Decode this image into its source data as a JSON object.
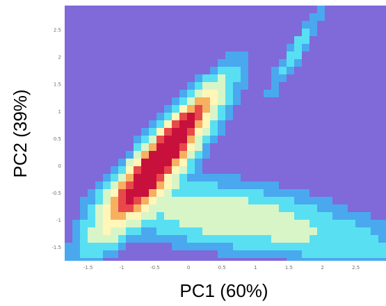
{
  "chart_data": {
    "type": "heatmap",
    "title": "",
    "xlabel": "PC1 (60%)",
    "ylabel": "PC2 (39%)",
    "xlim": [
      -1.85,
      2.95
    ],
    "ylim": [
      -1.75,
      2.95
    ],
    "x_ticks": [
      "-1.5",
      "-1",
      "-0.5",
      "0",
      "0.5",
      "1",
      "1.5",
      "2",
      "2.5"
    ],
    "x_tick_values": [
      -1.5,
      -1,
      -0.5,
      0,
      0.5,
      1,
      1.5,
      2,
      2.5
    ],
    "y_ticks": [
      "2.5",
      "2",
      "1.5",
      "1",
      "0.5",
      "0",
      "-0.5",
      "-1",
      "-1.5"
    ],
    "y_tick_values": [
      2.5,
      2,
      1.5,
      1,
      0.5,
      0,
      -0.5,
      -1,
      -1.5
    ],
    "grid": false,
    "legend": "none",
    "colormap": [
      "#8069d9",
      "#4aa8ee",
      "#58e0f2",
      "#d8f5c8",
      "#fff6b8",
      "#f7b060",
      "#e8484a",
      "#c8103c"
    ],
    "background_color": "#8069d9",
    "density_clusters": [
      {
        "cx": -0.5,
        "cy": -0.05,
        "dx_dir": 0.55,
        "dy_dir": 0.835,
        "len": 0.9,
        "wid": 0.2,
        "peak": 1.0
      },
      {
        "cx": -0.2,
        "cy": 0.55,
        "dx_dir": 0.55,
        "dy_dir": 0.835,
        "len": 0.7,
        "wid": 0.12,
        "peak": 0.55
      },
      {
        "cx": 0.4,
        "cy": -0.9,
        "dx_dir": 0.99,
        "dy_dir": -0.1,
        "len": 0.9,
        "wid": 0.35,
        "peak": 0.2
      },
      {
        "cx": 1.6,
        "cy": -1.2,
        "dx_dir": 0.97,
        "dy_dir": -0.25,
        "len": 1.3,
        "wid": 0.3,
        "peak": 0.15
      },
      {
        "cx": 1.6,
        "cy": 2.1,
        "dx_dir": 0.45,
        "dy_dir": 0.89,
        "len": 0.6,
        "wid": 0.08,
        "peak": 0.12
      }
    ]
  }
}
